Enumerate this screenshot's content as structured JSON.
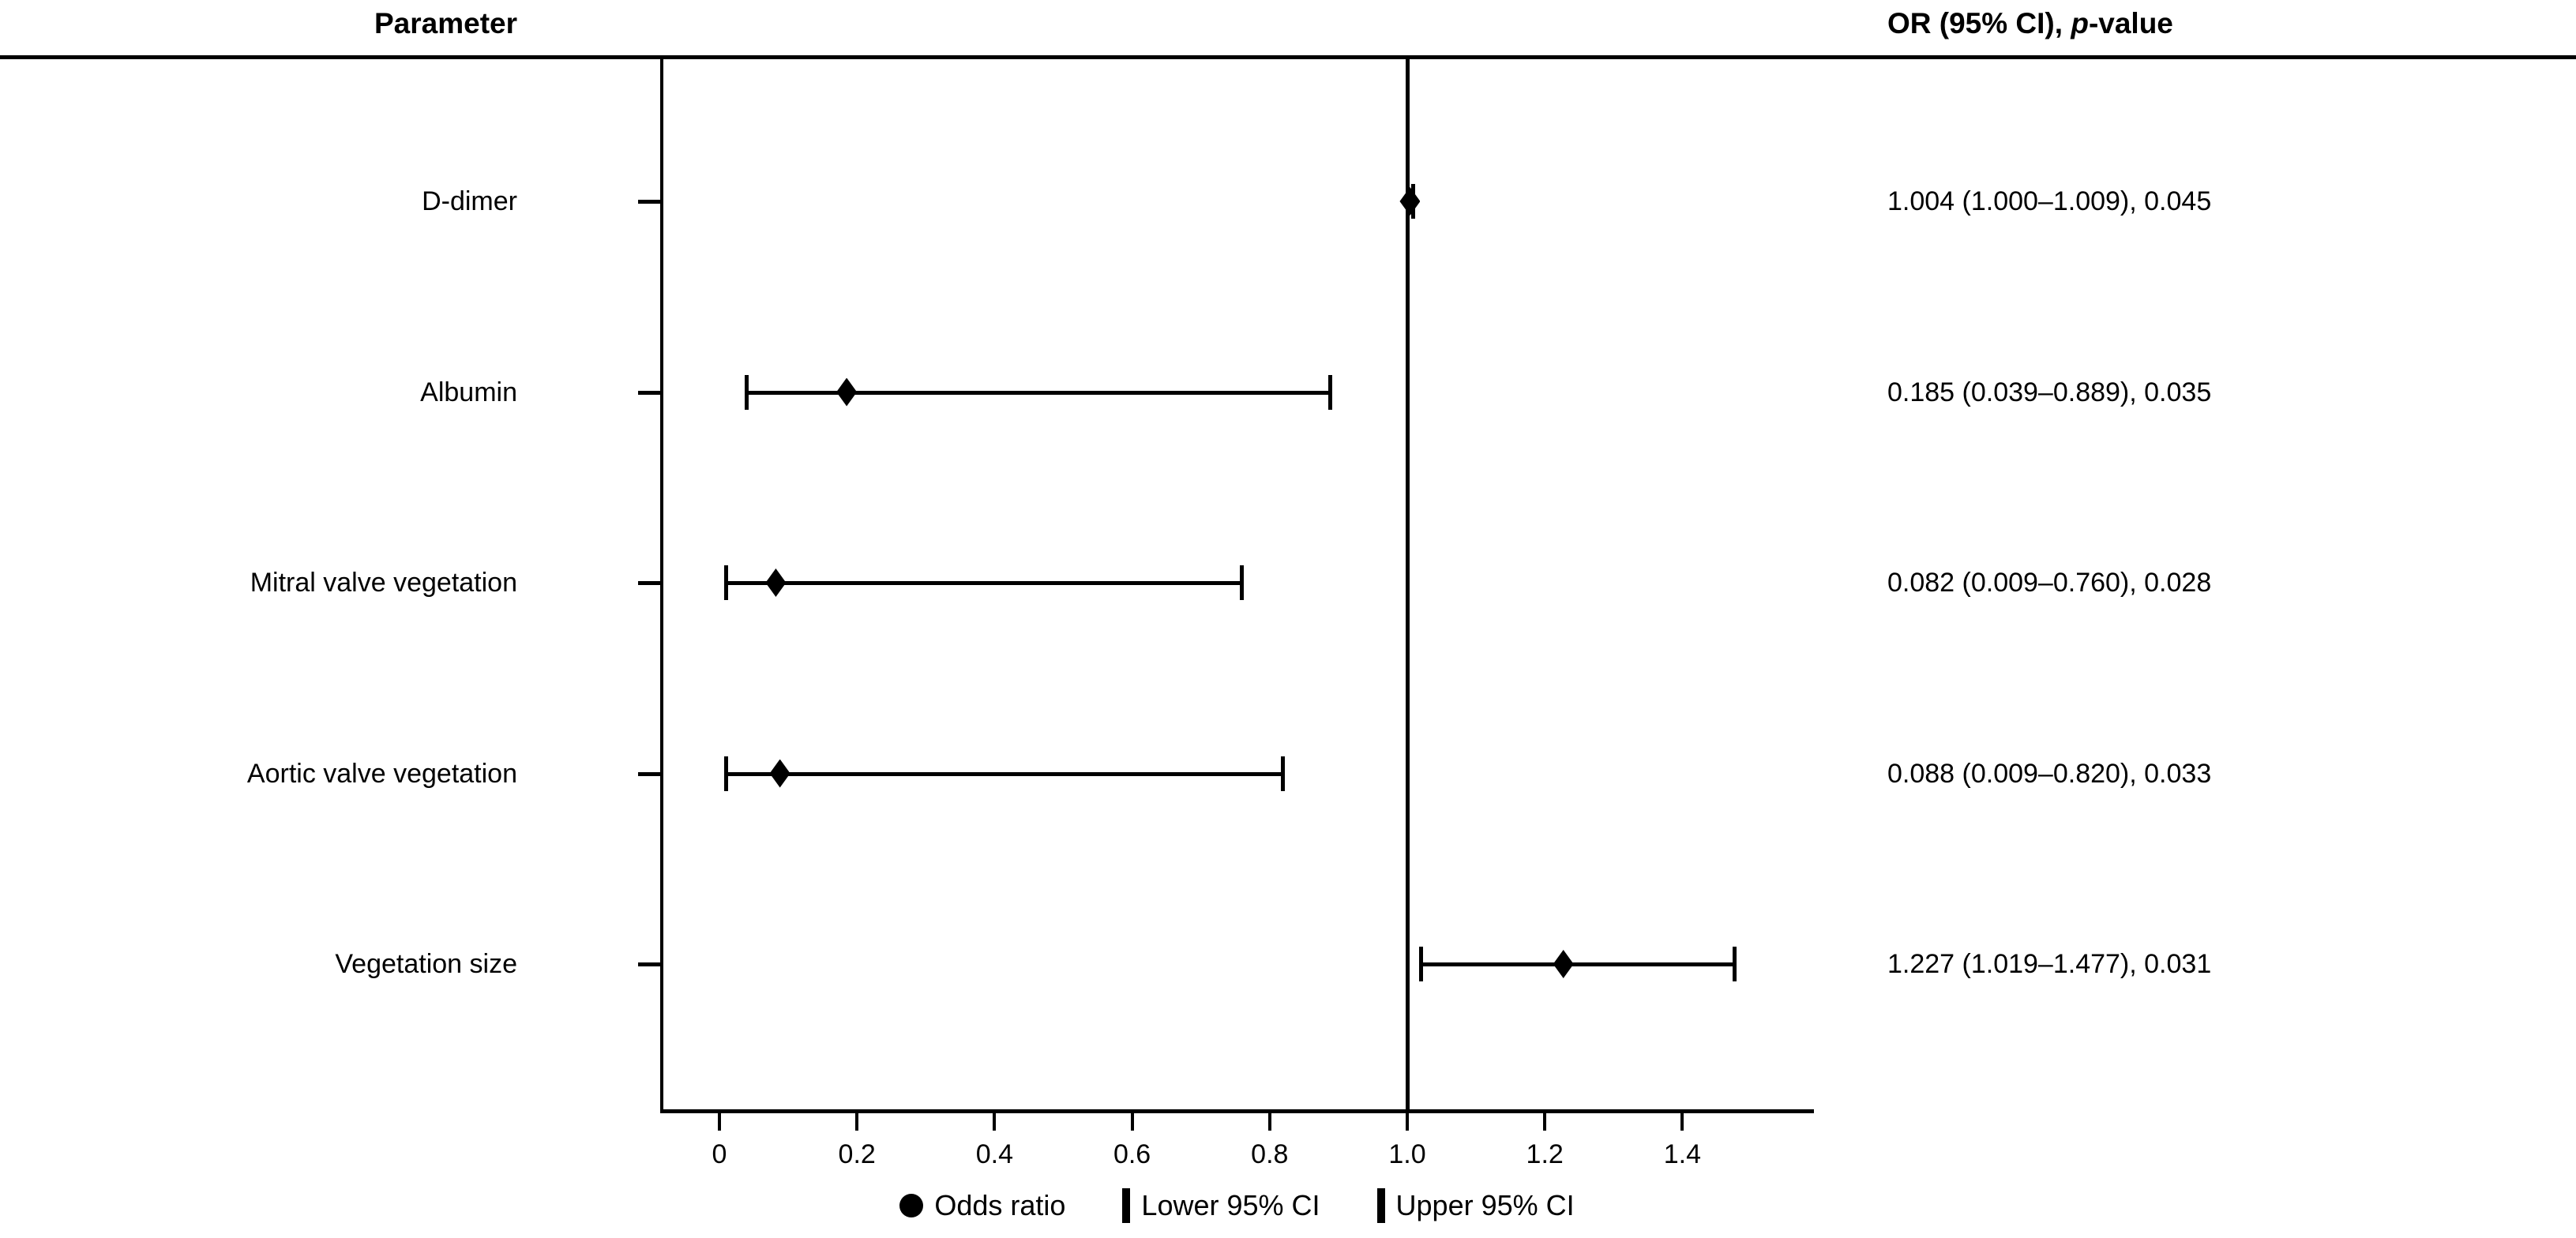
{
  "figure": {
    "header_left": "Parameter",
    "header_right_prefix": "OR (95% CI), ",
    "header_right_italic": "p",
    "header_right_suffix": "-value"
  },
  "legend": {
    "odds_ratio_label": "Odds ratio",
    "lower_ci_label": "Lower 95% CI",
    "upper_ci_label": "Upper 95% CI"
  },
  "colors": {
    "foreground": "#000000",
    "background": "#ffffff"
  },
  "chart_data": {
    "type": "forest",
    "title": "",
    "xlabel": "",
    "ylabel": "",
    "xlim": [
      -0.09,
      1.59
    ],
    "grid": false,
    "legend_position": "bottom-center",
    "reference_line_x": 1.0,
    "x_tick_values": [
      0,
      0.2,
      0.4,
      0.6,
      0.8,
      1.0,
      1.2,
      1.4
    ],
    "x_tick_labels": [
      "0",
      "0.2",
      "0.4",
      "0.6",
      "0.8",
      "1.0",
      "1.2",
      "1.4"
    ],
    "rows": [
      {
        "label": "D-dimer",
        "or": 1.004,
        "ci_low": 1.0,
        "ci_high": 1.009,
        "p_value": 0.045,
        "display": "1.004 (1.000–1.009), 0.045"
      },
      {
        "label": "Albumin",
        "or": 0.185,
        "ci_low": 0.039,
        "ci_high": 0.889,
        "p_value": 0.035,
        "display": "0.185 (0.039–0.889), 0.035"
      },
      {
        "label": "Mitral valve vegetation",
        "or": 0.082,
        "ci_low": 0.009,
        "ci_high": 0.76,
        "p_value": 0.028,
        "display": "0.082 (0.009–0.760), 0.028"
      },
      {
        "label": "Aortic valve vegetation",
        "or": 0.088,
        "ci_low": 0.009,
        "ci_high": 0.82,
        "p_value": 0.033,
        "display": "0.088 (0.009–0.820), 0.033"
      },
      {
        "label": "Vegetation size",
        "or": 1.227,
        "ci_low": 1.019,
        "ci_high": 1.477,
        "p_value": 0.031,
        "display": "1.227 (1.019–1.477), 0.031"
      }
    ],
    "marker_shapes": {
      "odds_ratio": "filled-diamond",
      "ci_ends": "vertical-bar"
    }
  }
}
